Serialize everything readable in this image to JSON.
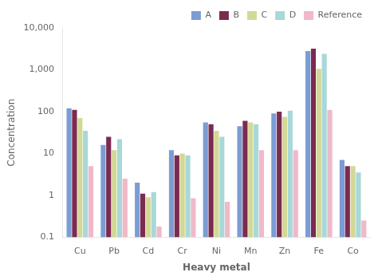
{
  "chart_data": {
    "type": "bar",
    "categories": [
      "Cu",
      "Pb",
      "Cd",
      "Cr",
      "Ni",
      "Mn",
      "Zn",
      "Fe",
      "Co"
    ],
    "series": [
      {
        "name": "A",
        "color": "#7b9cd4",
        "values": [
          120,
          16,
          2.0,
          12,
          55,
          45,
          90,
          2800,
          7
        ]
      },
      {
        "name": "B",
        "color": "#7b2a50",
        "values": [
          110,
          25,
          1.1,
          9,
          50,
          60,
          100,
          3200,
          5
        ]
      },
      {
        "name": "C",
        "color": "#d4d896",
        "values": [
          70,
          12,
          0.9,
          10,
          35,
          55,
          75,
          1050,
          5
        ]
      },
      {
        "name": "D",
        "color": "#a8d8d8",
        "values": [
          35,
          22,
          1.2,
          9,
          25,
          50,
          105,
          2400,
          3.5
        ]
      },
      {
        "name": "Reference",
        "color": "#f0b8c8",
        "values": [
          5,
          2.5,
          0.18,
          0.85,
          0.7,
          12,
          12,
          110,
          0.25
        ]
      }
    ],
    "xlabel": "Heavy metal",
    "ylabel": "Concentration",
    "log": "y",
    "ylim": [
      0.1,
      10000
    ],
    "yticks": [
      0.1,
      1,
      10,
      100,
      {
        "value": 1000,
        "label": "1,000"
      },
      {
        "value": 10000,
        "label": "10,000"
      }
    ],
    "grid": false,
    "legend": "upper right"
  }
}
